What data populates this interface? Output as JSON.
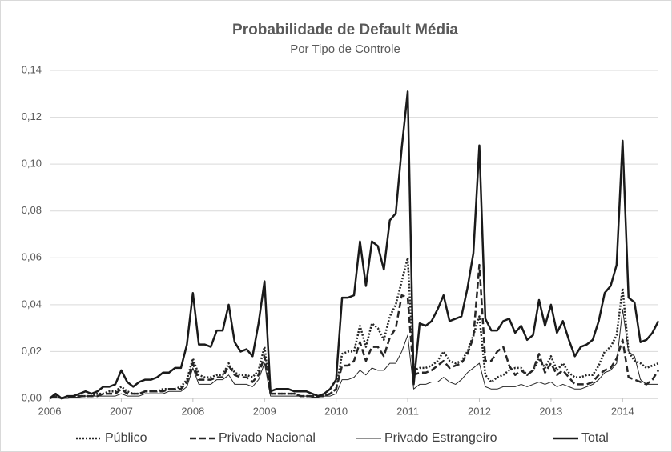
{
  "chart_data": {
    "type": "line",
    "title": "Probabilidade de Default Média",
    "subtitle": "Por Tipo de Controle",
    "categories": [
      "2006",
      null,
      null,
      null,
      null,
      null,
      null,
      null,
      null,
      null,
      null,
      null,
      "2007",
      null,
      null,
      null,
      null,
      null,
      null,
      null,
      null,
      null,
      null,
      null,
      "2008",
      null,
      null,
      null,
      null,
      null,
      null,
      null,
      null,
      null,
      null,
      null,
      "2009",
      null,
      null,
      null,
      null,
      null,
      null,
      null,
      null,
      null,
      null,
      null,
      "2010",
      null,
      null,
      null,
      null,
      null,
      null,
      null,
      null,
      null,
      null,
      null,
      "2011",
      null,
      null,
      null,
      null,
      null,
      null,
      null,
      null,
      null,
      null,
      null,
      "2012",
      null,
      null,
      null,
      null,
      null,
      null,
      null,
      null,
      null,
      null,
      null,
      "2013",
      null,
      null,
      null,
      null,
      null,
      null,
      null,
      null,
      null,
      null,
      null,
      "2014",
      null,
      null,
      null,
      null,
      null,
      null
    ],
    "ylim": [
      0,
      0.14
    ],
    "yticks": [
      {
        "value": 0,
        "label": "0,00"
      },
      {
        "value": 0.02,
        "label": "0,02"
      },
      {
        "value": 0.04,
        "label": "0,04"
      },
      {
        "value": 0.06,
        "label": "0,06"
      },
      {
        "value": 0.08,
        "label": "0,08"
      },
      {
        "value": 0.1,
        "label": "0,10"
      },
      {
        "value": 0.12,
        "label": "0,12"
      },
      {
        "value": 0.14,
        "label": "0,14"
      }
    ],
    "grid": true,
    "legend": "bottom",
    "series": [
      {
        "name": "Público",
        "color": "#262626",
        "line_style": "dotted",
        "line_width": 2.5,
        "values": [
          0,
          0.001,
          0,
          0.0005,
          0.001,
          0.001,
          0.001,
          0.001,
          0.002,
          0.002,
          0.003,
          0.003,
          0.005,
          0.003,
          0.002,
          0.002,
          0.003,
          0.003,
          0.003,
          0.004,
          0.004,
          0.004,
          0.005,
          0.008,
          0.017,
          0.01,
          0.009,
          0.009,
          0.01,
          0.01,
          0.015,
          0.011,
          0.01,
          0.01,
          0.009,
          0.012,
          0.022,
          0.002,
          0.002,
          0.002,
          0.002,
          0.002,
          0.001,
          0.001,
          0.001,
          0.001,
          0.001,
          0.002,
          0.004,
          0.019,
          0.02,
          0.02,
          0.031,
          0.022,
          0.032,
          0.03,
          0.025,
          0.035,
          0.04,
          0.05,
          0.06,
          0.012,
          0.013,
          0.013,
          0.014,
          0.016,
          0.02,
          0.016,
          0.015,
          0.016,
          0.02,
          0.027,
          0.035,
          0.01,
          0.007,
          0.009,
          0.01,
          0.012,
          0.013,
          0.013,
          0.01,
          0.012,
          0.017,
          0.013,
          0.018,
          0.012,
          0.015,
          0.011,
          0.009,
          0.009,
          0.01,
          0.01,
          0.014,
          0.02,
          0.022,
          0.027,
          0.047,
          0.02,
          0.016,
          0.015,
          0.013,
          0.014,
          0.015
        ]
      },
      {
        "name": "Privado Nacional",
        "color": "#262626",
        "line_style": "dashed",
        "line_width": 2.5,
        "values": [
          0,
          0.001,
          0,
          0.0005,
          0.001,
          0.001,
          0.001,
          0.001,
          0.001,
          0.002,
          0.002,
          0.002,
          0.004,
          0.002,
          0.002,
          0.002,
          0.003,
          0.003,
          0.003,
          0.003,
          0.004,
          0.004,
          0.004,
          0.007,
          0.015,
          0.008,
          0.008,
          0.008,
          0.009,
          0.009,
          0.014,
          0.01,
          0.009,
          0.009,
          0.007,
          0.01,
          0.018,
          0.002,
          0.002,
          0.002,
          0.002,
          0.002,
          0.001,
          0.001,
          0.001,
          0.001,
          0.001,
          0.002,
          0.004,
          0.014,
          0.014,
          0.016,
          0.024,
          0.016,
          0.022,
          0.022,
          0.018,
          0.026,
          0.03,
          0.044,
          0.043,
          0.01,
          0.011,
          0.011,
          0.012,
          0.014,
          0.016,
          0.013,
          0.014,
          0.015,
          0.019,
          0.026,
          0.057,
          0.016,
          0.016,
          0.02,
          0.022,
          0.014,
          0.01,
          0.012,
          0.01,
          0.012,
          0.019,
          0.011,
          0.015,
          0.01,
          0.012,
          0.009,
          0.006,
          0.006,
          0.006,
          0.007,
          0.01,
          0.012,
          0.013,
          0.017,
          0.025,
          0.009,
          0.008,
          0.007,
          0.006,
          0.008,
          0.012
        ]
      },
      {
        "name": "Privado Estrangeiro",
        "color": "#262626",
        "line_style": "solid",
        "line_width": 1,
        "values": [
          0,
          0.0005,
          0,
          0,
          0.0005,
          0.0005,
          0.001,
          0.001,
          0.001,
          0.001,
          0.001,
          0.001,
          0.002,
          0.001,
          0.001,
          0.001,
          0.002,
          0.002,
          0.002,
          0.002,
          0.003,
          0.003,
          0.003,
          0.005,
          0.013,
          0.006,
          0.006,
          0.006,
          0.008,
          0.008,
          0.01,
          0.006,
          0.006,
          0.006,
          0.005,
          0.008,
          0.015,
          0.001,
          0.001,
          0.001,
          0.001,
          0.001,
          0.001,
          0.001,
          0.0005,
          0.0005,
          0.001,
          0.001,
          0.002,
          0.008,
          0.008,
          0.009,
          0.012,
          0.01,
          0.013,
          0.012,
          0.012,
          0.015,
          0.015,
          0.02,
          0.027,
          0.004,
          0.006,
          0.006,
          0.007,
          0.007,
          0.009,
          0.007,
          0.006,
          0.008,
          0.011,
          0.013,
          0.015,
          0.005,
          0.004,
          0.004,
          0.005,
          0.005,
          0.005,
          0.006,
          0.005,
          0.006,
          0.007,
          0.006,
          0.007,
          0.005,
          0.006,
          0.005,
          0.004,
          0.004,
          0.005,
          0.006,
          0.008,
          0.011,
          0.012,
          0.015,
          0.038,
          0.02,
          0.018,
          0.008,
          0.006,
          0.006,
          0.006
        ]
      },
      {
        "name": "Total",
        "color": "#1a1a1a",
        "line_style": "solid",
        "line_width": 2.5,
        "values": [
          0,
          0.002,
          0,
          0.001,
          0.001,
          0.002,
          0.003,
          0.002,
          0.003,
          0.005,
          0.005,
          0.006,
          0.012,
          0.007,
          0.005,
          0.007,
          0.008,
          0.008,
          0.009,
          0.011,
          0.011,
          0.013,
          0.013,
          0.023,
          0.045,
          0.023,
          0.023,
          0.022,
          0.029,
          0.029,
          0.04,
          0.024,
          0.02,
          0.021,
          0.018,
          0.032,
          0.05,
          0.003,
          0.004,
          0.004,
          0.004,
          0.003,
          0.003,
          0.003,
          0.002,
          0.001,
          0.002,
          0.004,
          0.008,
          0.043,
          0.043,
          0.044,
          0.067,
          0.048,
          0.067,
          0.065,
          0.055,
          0.076,
          0.079,
          0.107,
          0.131,
          0.006,
          0.032,
          0.031,
          0.033,
          0.038,
          0.044,
          0.033,
          0.034,
          0.035,
          0.047,
          0.062,
          0.108,
          0.034,
          0.029,
          0.029,
          0.033,
          0.034,
          0.028,
          0.031,
          0.025,
          0.027,
          0.042,
          0.031,
          0.04,
          0.028,
          0.033,
          0.025,
          0.018,
          0.022,
          0.023,
          0.025,
          0.033,
          0.045,
          0.048,
          0.057,
          0.11,
          0.043,
          0.041,
          0.024,
          0.025,
          0.028,
          0.033
        ]
      }
    ]
  }
}
